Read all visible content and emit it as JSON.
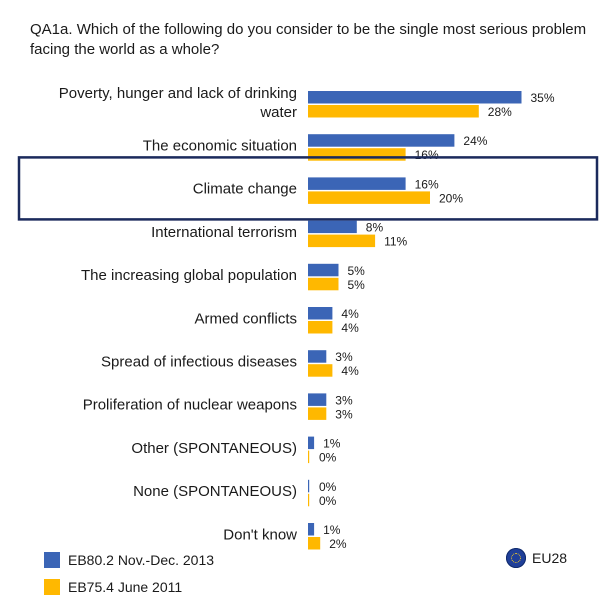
{
  "question": "QA1a. Which of the following do you consider to be the single most serious problem facing the world as a whole?",
  "colors": {
    "series1": "#3b65b6",
    "series2": "#ffb800",
    "highlight": "#1b2a5c"
  },
  "highlighted_category": "Climate change",
  "eu_label": "EU28",
  "chart_data": {
    "type": "bar",
    "orientation": "horizontal",
    "categories": [
      [
        "Poverty, hunger and lack of drinking",
        "water"
      ],
      [
        "The economic situation"
      ],
      [
        "Climate change"
      ],
      [
        "International terrorism"
      ],
      [
        "The increasing global population"
      ],
      [
        "Armed conflicts"
      ],
      [
        "Spread of infectious diseases"
      ],
      [
        "Proliferation of nuclear weapons"
      ],
      [
        "Other (SPONTANEOUS)"
      ],
      [
        "None (SPONTANEOUS)"
      ],
      [
        "Don't know"
      ]
    ],
    "series": [
      {
        "name": "EB80.2 Nov.-Dec. 2013",
        "color": "#3b65b6",
        "values": [
          35,
          24,
          16,
          8,
          5,
          4,
          3,
          3,
          1,
          0,
          1
        ]
      },
      {
        "name": "EB75.4 June 2011",
        "color": "#ffb800",
        "values": [
          28,
          16,
          20,
          11,
          5,
          4,
          4,
          3,
          0,
          0,
          2
        ]
      }
    ],
    "unit": "%",
    "legend_position": "bottom-left",
    "grid": false
  }
}
